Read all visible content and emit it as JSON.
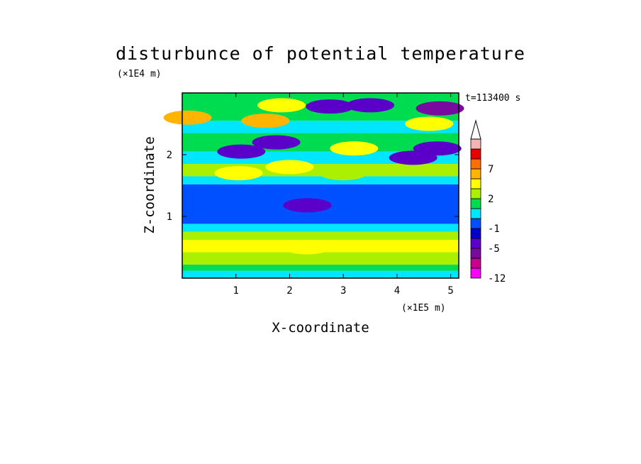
{
  "chart_data": {
    "type": "heatmap",
    "title": "disturbunce of potential temperature",
    "xlabel": "X-coordinate",
    "ylabel": "Z-coordinate",
    "x_unit": "(×1E5 m)",
    "y_unit": "(×1E4 m)",
    "time_label": "t=113400 s",
    "xlim": [
      0,
      5.15
    ],
    "ylim": [
      0,
      3.0
    ],
    "x_ticks": [
      "1",
      "2",
      "3",
      "4",
      "5"
    ],
    "y_ticks": [
      "1",
      "2"
    ],
    "colorbar": {
      "levels": [
        -12,
        -10,
        -7,
        -5,
        -3,
        -1,
        0,
        1,
        2,
        3,
        5,
        7,
        9,
        12
      ],
      "tick_labels": [
        "7",
        "2",
        "-1",
        "-5",
        "-12"
      ],
      "colors": [
        "#ff00ff",
        "#c8008c",
        "#780aa0",
        "#5a00c8",
        "#0000c8",
        "#0050ff",
        "#00e6ff",
        "#00dc50",
        "#aaf000",
        "#ffff00",
        "#ffb400",
        "#ff6e00",
        "#e60000",
        "#f5b4b4"
      ]
    },
    "bands": [
      {
        "z": [
          0.0,
          0.12
        ],
        "value": 0.6
      },
      {
        "z": [
          0.12,
          0.22
        ],
        "value": 1.5
      },
      {
        "z": [
          0.22,
          0.42
        ],
        "value": 2.6
      },
      {
        "z": [
          0.42,
          0.62
        ],
        "value": 3.0
      },
      {
        "z": [
          0.62,
          0.75
        ],
        "value": 2.4
      },
      {
        "z": [
          0.75,
          0.88
        ],
        "value": 0.5
      },
      {
        "z": [
          0.88,
          1.52
        ],
        "value": -0.5
      },
      {
        "z": [
          1.52,
          1.65
        ],
        "value": 0.6
      },
      {
        "z": [
          1.65,
          1.85
        ],
        "value": 2.0
      },
      {
        "z": [
          1.85,
          2.05
        ],
        "value": 0.2
      },
      {
        "z": [
          2.05,
          2.35
        ],
        "value": 1.5
      },
      {
        "z": [
          2.35,
          2.55
        ],
        "value": 0.7
      },
      {
        "z": [
          2.55,
          3.0
        ],
        "value": 1.8
      }
    ],
    "features": [
      {
        "x": 1.55,
        "z": 2.55,
        "value": 5.5
      },
      {
        "x": 1.85,
        "z": 2.8,
        "value": 3.6
      },
      {
        "x": 2.75,
        "z": 2.78,
        "value": -4.2
      },
      {
        "x": 3.5,
        "z": 2.8,
        "value": -4.0
      },
      {
        "x": 4.8,
        "z": 2.75,
        "value": -5.5
      },
      {
        "x": 3.2,
        "z": 2.1,
        "value": 3.8
      },
      {
        "x": 4.6,
        "z": 2.5,
        "value": 4.5
      },
      {
        "x": 4.75,
        "z": 2.1,
        "value": -5.0
      },
      {
        "x": 1.1,
        "z": 2.05,
        "value": -4.2
      },
      {
        "x": 1.75,
        "z": 2.2,
        "value": -4.0
      },
      {
        "x": 2.0,
        "z": 1.8,
        "value": 3.5
      },
      {
        "x": 1.05,
        "z": 1.7,
        "value": 3.4
      },
      {
        "x": 3.0,
        "z": 1.7,
        "value": 2.3
      },
      {
        "x": 2.33,
        "z": 1.18,
        "value": -4.5
      },
      {
        "x": 2.32,
        "z": 0.5,
        "value": 4.0
      },
      {
        "x": 0.1,
        "z": 2.6,
        "value": 6.0
      },
      {
        "x": 4.3,
        "z": 1.95,
        "value": -3.2
      }
    ]
  }
}
